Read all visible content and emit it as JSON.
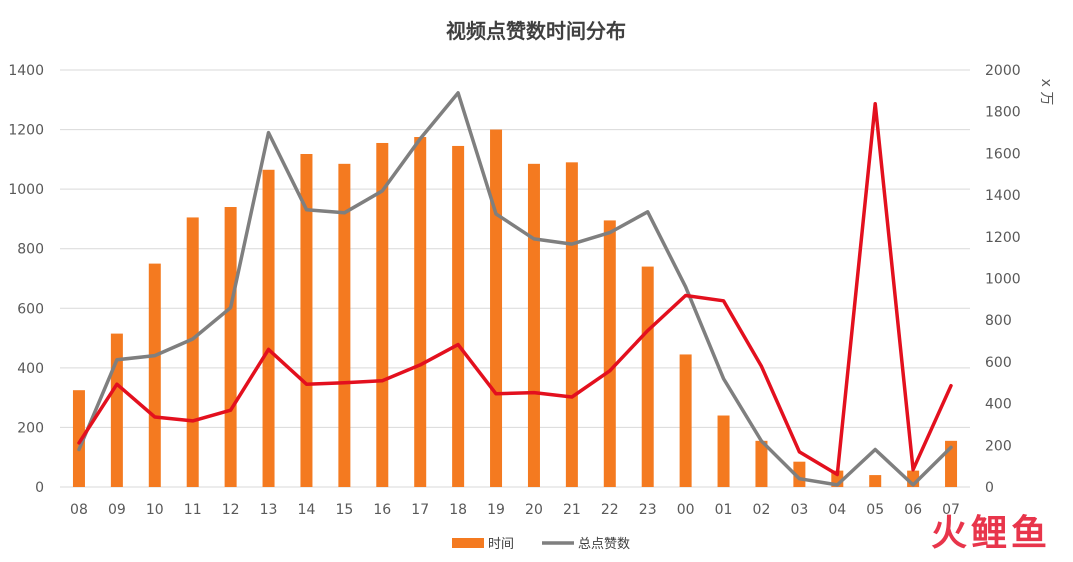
{
  "chart_data": {
    "type": "bar",
    "title": "视频点赞数时间分布",
    "categories": [
      "08",
      "09",
      "10",
      "11",
      "12",
      "13",
      "14",
      "15",
      "16",
      "17",
      "18",
      "19",
      "20",
      "21",
      "22",
      "23",
      "00",
      "01",
      "02",
      "03",
      "04",
      "05",
      "06",
      "07"
    ],
    "y_left": {
      "ticks": [
        0,
        200,
        400,
        600,
        800,
        1000,
        1200,
        1400
      ],
      "range": [
        0,
        1400
      ]
    },
    "y_right": {
      "ticks": [
        0,
        200,
        400,
        600,
        800,
        1000,
        1200,
        1400,
        1600,
        1800,
        2000
      ],
      "range": [
        0,
        2000
      ],
      "unit_label": "x 万"
    },
    "series": [
      {
        "name": "时间",
        "type": "bar",
        "axis": "left",
        "color": "#f47a20",
        "values": [
          325,
          515,
          750,
          905,
          940,
          1065,
          1118,
          1085,
          1155,
          1175,
          1145,
          1200,
          1085,
          1090,
          895,
          740,
          445,
          240,
          155,
          85,
          55,
          40,
          55,
          155
        ]
      },
      {
        "name": "总点赞数",
        "type": "line",
        "axis": "right",
        "color": "#7f7f7f",
        "values": [
          180,
          610,
          630,
          710,
          860,
          1700,
          1330,
          1315,
          1420,
          1670,
          1890,
          1310,
          1190,
          1165,
          1220,
          1320,
          960,
          520,
          220,
          40,
          10,
          180,
          10,
          190
        ]
      },
      {
        "type": "line",
        "axis": "left",
        "color": "#e3101e",
        "values": [
          148,
          345,
          235,
          222,
          258,
          462,
          345,
          350,
          357,
          410,
          478,
          313,
          317,
          302,
          390,
          525,
          643,
          625,
          405,
          118,
          42,
          1287,
          58,
          340
        ]
      }
    ],
    "grid": true,
    "legend": "bottom"
  },
  "watermark": "火鲤鱼"
}
